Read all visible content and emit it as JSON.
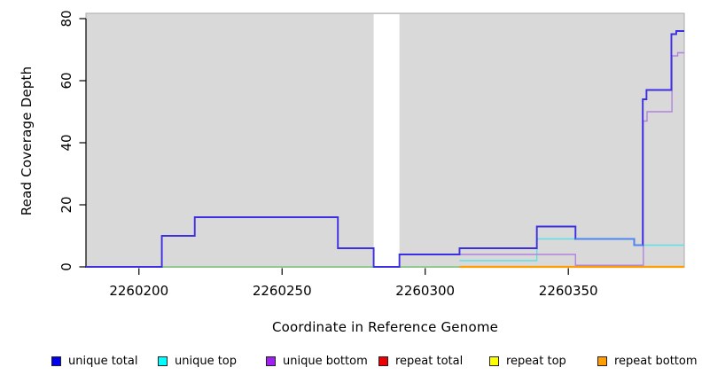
{
  "chart_data": {
    "type": "line",
    "subtype": "step-coverage",
    "title": "",
    "xlabel": "Coordinate in Reference Genome",
    "ylabel": "Read Coverage Depth",
    "background_color": "#d9d9d9",
    "plot_border_color": "#ababab",
    "grid": false,
    "x_axis": {
      "ticks": [
        2260200,
        2260250,
        2260300,
        2260350
      ],
      "range": [
        2260181.5,
        2260390.5
      ]
    },
    "y_axis": {
      "ticks": [
        0,
        20,
        40,
        60,
        80
      ],
      "range": [
        0,
        80
      ]
    },
    "gap_region": {
      "from": 2260282,
      "to": 2260291,
      "color": "#ffffff"
    },
    "series": [
      {
        "name": "zero-baseline-left",
        "color": "#7dc97d",
        "width": 1.4,
        "points": [
          [
            2260181.5,
            0
          ]
        ],
        "end": 2260312
      },
      {
        "name": "unique top",
        "color": "#58e2e8",
        "width": 1.4,
        "points": [
          [
            2260312,
            2
          ],
          [
            2260339,
            9
          ],
          [
            2260373,
            7
          ]
        ],
        "end": 2260390.5
      },
      {
        "name": "unique bottom",
        "color": "#b183e0",
        "width": 1.4,
        "points": [
          [
            2260312,
            4
          ],
          [
            2260352.5,
            0.5
          ],
          [
            2260376.2,
            47
          ],
          [
            2260377.5,
            50
          ],
          [
            2260386.2,
            68
          ],
          [
            2260388.2,
            69
          ]
        ],
        "end": 2260390.5
      },
      {
        "name": "unique total",
        "color": "#3c2fe0",
        "width": 1.9,
        "points": [
          [
            2260181.5,
            0
          ],
          [
            2260208,
            10
          ],
          [
            2260219.5,
            16
          ],
          [
            2260269.5,
            6
          ],
          [
            2260282,
            0
          ],
          [
            2260291,
            4
          ],
          [
            2260312,
            6
          ],
          [
            2260339,
            13
          ],
          [
            2260352.5,
            9
          ],
          [
            2260373,
            7
          ],
          [
            2260376,
            54
          ],
          [
            2260377.3,
            57
          ],
          [
            2260386,
            75
          ],
          [
            2260387.7,
            76
          ]
        ],
        "end": 2260390.5
      },
      {
        "name": "unique-total-top-overlap",
        "color": "#4c86f2",
        "width": 1.9,
        "points": [
          [
            2260352.5,
            9
          ],
          [
            2260373,
            7
          ]
        ],
        "end": 2260376
      },
      {
        "name": "repeat bottom",
        "color": "#ff9d00",
        "width": 2.3,
        "points": [
          [
            2260312,
            0
          ]
        ],
        "end": 2260390.5
      }
    ],
    "legend": [
      {
        "label": "unique total",
        "color": "#0000ee"
      },
      {
        "label": "unique top",
        "color": "#00ffff"
      },
      {
        "label": "unique bottom",
        "color": "#a020f0"
      },
      {
        "label": "repeat total",
        "color": "#ee0000"
      },
      {
        "label": "repeat top",
        "color": "#ffff00"
      },
      {
        "label": "repeat bottom",
        "color": "#ff9e00"
      }
    ],
    "legend_position": "bottom"
  }
}
